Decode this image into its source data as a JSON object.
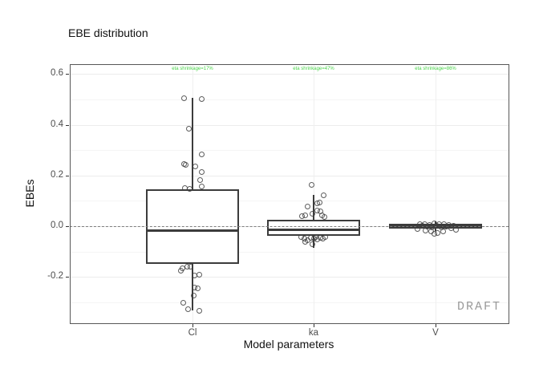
{
  "watermark": "DRAFT",
  "colors": {
    "box_border": "#3c3c3c",
    "point": "#3f3f3f",
    "annotation_green": "#4bd34b",
    "reference_line": "#7f7f7f",
    "watermark_gray": "#9a9a9a"
  },
  "chart_data": {
    "type": "boxplot",
    "title": "EBE distribution",
    "xlabel": "Model parameters",
    "ylabel": "EBEs",
    "categories": [
      "Cl",
      "ka",
      "V"
    ],
    "yticks": [
      0.6,
      0.4,
      0.2,
      0.0,
      -0.2
    ],
    "ytick_labels": [
      "0.6",
      "0.4",
      "0.2",
      "0.0",
      "-0.2"
    ],
    "yticks_minor": [
      0.5,
      0.3,
      0.1,
      -0.1,
      -0.3
    ],
    "ylim": [
      -0.38,
      0.64
    ],
    "grid": "major+minor horizontal, major vertical at categories",
    "legend": "none",
    "reference_line": {
      "y": 0,
      "style": "dashed"
    },
    "annotations": [
      {
        "category": "Cl",
        "text": "eta shrinkage=17%"
      },
      {
        "category": "ka",
        "text": "eta shrinkage=47%"
      },
      {
        "category": "V",
        "text": "eta shrinkage=86%"
      }
    ],
    "boxes": [
      {
        "category": "Cl",
        "whisker_low": -0.333,
        "q1": -0.15,
        "median": -0.016,
        "q3": 0.147,
        "whisker_high": 0.505
      },
      {
        "category": "ka",
        "whisker_low": -0.086,
        "q1": -0.038,
        "median": -0.013,
        "q3": 0.026,
        "whisker_high": 0.122
      },
      {
        "category": "V",
        "whisker_low": -0.019,
        "q1": -0.01,
        "median": 0.0,
        "q3": 0.01,
        "whisker_high": 0.019
      }
    ],
    "points": [
      {
        "category": "Cl",
        "values_dx": [
          [
            0.505,
            -11
          ],
          [
            0.502,
            11
          ],
          [
            0.385,
            -5
          ],
          [
            0.285,
            11
          ],
          [
            0.247,
            -11
          ],
          [
            0.245,
            -9
          ],
          [
            0.238,
            3
          ],
          [
            0.215,
            11
          ],
          [
            0.183,
            9
          ],
          [
            0.157,
            11
          ],
          [
            0.151,
            -10
          ],
          [
            0.15,
            -4
          ],
          [
            -0.157,
            -3
          ],
          [
            -0.159,
            -7
          ],
          [
            -0.163,
            -13
          ],
          [
            -0.175,
            -15
          ],
          [
            -0.19,
            8
          ],
          [
            -0.193,
            2
          ],
          [
            -0.24,
            2
          ],
          [
            -0.244,
            6
          ],
          [
            -0.271,
            1
          ],
          [
            -0.3,
            -12
          ],
          [
            -0.326,
            -6
          ],
          [
            -0.332,
            8
          ]
        ]
      },
      {
        "category": "ka",
        "values_dx": [
          [
            0.163,
            -3
          ],
          [
            0.125,
            12
          ],
          [
            0.096,
            7
          ],
          [
            0.093,
            4
          ],
          [
            0.08,
            -8
          ],
          [
            0.064,
            4
          ],
          [
            0.06,
            8
          ],
          [
            0.051,
            -2
          ],
          [
            0.045,
            -11
          ],
          [
            0.042,
            -15
          ],
          [
            0.045,
            10
          ],
          [
            0.038,
            13
          ],
          [
            -0.04,
            -16
          ],
          [
            -0.048,
            -12
          ],
          [
            -0.054,
            -8
          ],
          [
            -0.045,
            -4
          ],
          [
            -0.048,
            0
          ],
          [
            -0.051,
            4
          ],
          [
            -0.042,
            2
          ],
          [
            -0.045,
            8
          ],
          [
            -0.048,
            11
          ],
          [
            -0.04,
            14
          ],
          [
            -0.061,
            -11
          ],
          [
            -0.07,
            -2
          ]
        ]
      },
      {
        "category": "V",
        "values_dx": [
          [
            0.008,
            -20
          ],
          [
            0.01,
            -14
          ],
          [
            0.006,
            -8
          ],
          [
            0.012,
            -2
          ],
          [
            0.008,
            4
          ],
          [
            0.01,
            10
          ],
          [
            0.006,
            16
          ],
          [
            0.004,
            22
          ],
          [
            0.002,
            -17
          ],
          [
            0.0,
            -11
          ],
          [
            -0.004,
            -5
          ],
          [
            0.002,
            1
          ],
          [
            -0.002,
            7
          ],
          [
            0.0,
            13
          ],
          [
            -0.006,
            19
          ],
          [
            -0.015,
            -13
          ],
          [
            -0.02,
            -6
          ],
          [
            -0.025,
            2
          ],
          [
            -0.018,
            9
          ],
          [
            -0.03,
            -2
          ],
          [
            -0.012,
            25
          ],
          [
            -0.008,
            -23
          ]
        ]
      }
    ]
  }
}
